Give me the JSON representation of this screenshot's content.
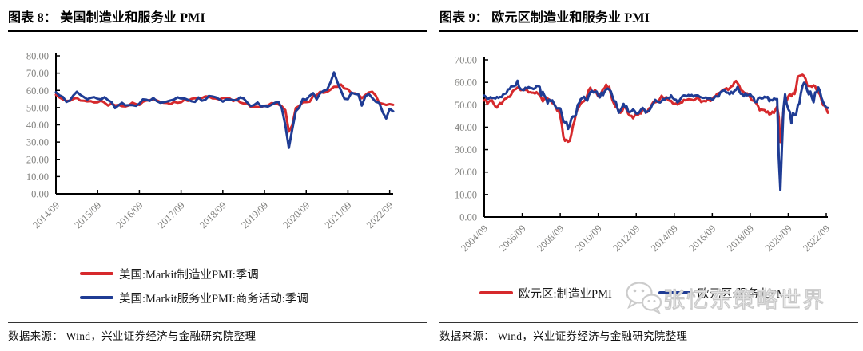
{
  "panels": [
    {
      "title": "图表 8：  美国制造业和服务业 PMI",
      "source": "数据来源：  Wind，兴业证券经济与金融研究院整理",
      "legend": [
        {
          "label": "美国:Markit制造业PMI:季调",
          "color": "#d6292c"
        },
        {
          "label": "美国:Markit服务业PMI:商务活动:季调",
          "color": "#1f3c94"
        }
      ]
    },
    {
      "title": "图表 9：  欧元区制造业和服务业 PMI",
      "source": "数据来源：  Wind，兴业证券经济与金融研究院整理",
      "legend": [
        {
          "label": "欧元区:制造业PMI",
          "color": "#d6292c"
        },
        {
          "label": "欧元区:服务业PMI",
          "color": "#1f3c94"
        }
      ],
      "watermark_text": "张忆东策略世界"
    }
  ],
  "colors": {
    "manufacturing_red": "#d6292c",
    "services_blue": "#1f3c94",
    "axis_black": "#000000",
    "tick_gray": "#80807e",
    "watermark_gray": "#cccccc"
  },
  "chart_data": [
    {
      "type": "line",
      "title": "美国制造业和服务业 PMI",
      "x_start": "2014/09",
      "x_end": "2022/10",
      "x_frequency": "monthly",
      "ylim": [
        0,
        80
      ],
      "y_step": 10,
      "grid": false,
      "legend_position": "bottom-left-stacked",
      "x_tick_labels": [
        "2014/09",
        "2015/09",
        "2016/09",
        "2017/09",
        "2018/09",
        "2019/09",
        "2020/09",
        "2021/09",
        "2022/09"
      ],
      "x_tick_indices": [
        0,
        12,
        24,
        36,
        48,
        60,
        72,
        84,
        96
      ],
      "series": [
        {
          "name": "美国:Markit制造业PMI:季调",
          "color": "#d6292c",
          "values": [
            57.5,
            55.9,
            54.8,
            53.9,
            53.9,
            55.1,
            55.7,
            54.1,
            54.0,
            53.6,
            53.8,
            53.0,
            53.1,
            54.1,
            52.8,
            51.2,
            52.4,
            51.3,
            51.5,
            50.8,
            50.7,
            51.3,
            52.9,
            52.0,
            51.5,
            53.4,
            54.1,
            54.3,
            55.0,
            54.2,
            53.3,
            52.8,
            52.7,
            52.0,
            53.3,
            52.8,
            53.1,
            54.6,
            53.9,
            55.1,
            55.5,
            55.3,
            55.6,
            56.5,
            56.4,
            55.4,
            55.3,
            54.7,
            55.6,
            55.7,
            55.3,
            53.8,
            54.9,
            53.0,
            52.4,
            52.6,
            50.5,
            50.6,
            50.4,
            50.3,
            51.1,
            51.3,
            52.6,
            52.4,
            51.9,
            50.7,
            48.5,
            36.1,
            39.8,
            49.8,
            50.9,
            53.1,
            53.2,
            53.4,
            56.7,
            57.1,
            59.2,
            58.6,
            59.1,
            60.5,
            62.1,
            62.1,
            63.4,
            61.1,
            60.7,
            58.4,
            58.3,
            57.7,
            55.5,
            57.3,
            58.8,
            59.2,
            57.0,
            52.7,
            52.2,
            51.5,
            52.0,
            51.6
          ]
        },
        {
          "name": "美国:Markit服务业PMI:商务活动:季调",
          "color": "#1f3c94",
          "values": [
            58.9,
            57.1,
            56.2,
            53.3,
            54.2,
            57.1,
            59.2,
            57.4,
            56.2,
            54.8,
            55.7,
            56.1,
            55.1,
            54.8,
            56.1,
            54.3,
            53.2,
            49.7,
            51.3,
            52.8,
            51.3,
            51.4,
            51.4,
            51.0,
            52.3,
            54.8,
            54.6,
            53.9,
            55.6,
            53.8,
            52.8,
            53.1,
            53.6,
            54.2,
            54.7,
            56.0,
            55.3,
            55.3,
            54.5,
            53.7,
            53.3,
            55.9,
            54.0,
            54.6,
            56.8,
            56.5,
            56.0,
            54.8,
            53.5,
            54.8,
            54.7,
            54.4,
            54.2,
            56.0,
            55.3,
            53.0,
            50.9,
            51.5,
            53.0,
            50.7,
            50.9,
            50.6,
            51.6,
            52.8,
            53.4,
            49.4,
            39.8,
            26.7,
            37.5,
            47.9,
            50.0,
            55.0,
            54.6,
            56.9,
            58.4,
            54.8,
            58.3,
            59.8,
            60.4,
            64.7,
            70.4,
            64.6,
            59.9,
            55.1,
            54.9,
            58.7,
            58.0,
            57.6,
            51.2,
            56.5,
            58.0,
            55.6,
            53.4,
            52.7,
            47.3,
            43.7,
            49.3,
            47.8
          ]
        }
      ]
    },
    {
      "type": "line",
      "title": "欧元区制造业和服务业 PMI",
      "x_start": "2004/09",
      "x_end": "2022/10",
      "x_frequency": "monthly",
      "ylim": [
        0,
        70
      ],
      "y_step": 10,
      "grid": false,
      "legend_position": "bottom-row",
      "x_tick_labels": [
        "2004/09",
        "2006/09",
        "2008/09",
        "2010/09",
        "2012/09",
        "2014/09",
        "2016/09",
        "2018/09",
        "2020/09",
        "2022/09"
      ],
      "x_tick_indices": [
        0,
        24,
        48,
        72,
        96,
        120,
        144,
        168,
        192,
        216
      ],
      "series": [
        {
          "name": "欧元区:制造业PMI",
          "color": "#d6292c",
          "values": [
            51.9,
            52.4,
            50.4,
            51.4,
            51.9,
            51.9,
            50.4,
            49.2,
            48.7,
            49.9,
            50.8,
            50.4,
            51.7,
            52.7,
            52.8,
            53.6,
            53.5,
            54.5,
            56.1,
            56.7,
            57.0,
            57.7,
            57.4,
            56.5,
            56.6,
            57.0,
            56.6,
            56.5,
            55.5,
            55.6,
            55.4,
            55.4,
            55.0,
            55.6,
            54.9,
            54.3,
            53.2,
            51.5,
            52.8,
            52.6,
            52.8,
            52.3,
            52.0,
            50.7,
            50.6,
            49.2,
            47.4,
            47.6,
            45.0,
            41.1,
            35.6,
            33.9,
            34.4,
            33.5,
            33.9,
            36.8,
            40.7,
            42.6,
            46.3,
            48.2,
            49.3,
            50.7,
            51.2,
            51.6,
            52.4,
            54.2,
            56.6,
            57.6,
            55.8,
            55.6,
            56.7,
            55.1,
            53.7,
            54.6,
            55.3,
            57.1,
            57.3,
            59.0,
            57.5,
            58.0,
            54.6,
            52.0,
            50.4,
            49.0,
            48.5,
            47.1,
            46.4,
            46.9,
            48.8,
            49.0,
            47.7,
            45.9,
            45.1,
            45.1,
            44.0,
            45.1,
            46.1,
            45.4,
            46.2,
            46.1,
            47.9,
            47.9,
            46.8,
            46.7,
            48.3,
            48.8,
            50.3,
            51.4,
            51.1,
            51.3,
            51.6,
            52.7,
            54.0,
            53.2,
            53.0,
            53.4,
            52.2,
            51.8,
            51.8,
            50.7,
            50.3,
            50.6,
            50.1,
            50.6,
            51.0,
            51.0,
            52.2,
            52.0,
            52.2,
            52.5,
            52.4,
            52.3,
            52.0,
            52.3,
            52.8,
            53.2,
            52.3,
            51.2,
            51.6,
            51.7,
            51.5,
            52.8,
            52.0,
            51.7,
            52.6,
            53.5,
            53.7,
            54.9,
            55.2,
            55.4,
            56.2,
            56.7,
            57.0,
            57.4,
            56.6,
            57.4,
            58.1,
            58.5,
            60.1,
            60.6,
            59.6,
            58.6,
            56.6,
            56.2,
            55.5,
            54.9,
            55.1,
            54.6,
            53.2,
            52.0,
            51.8,
            51.4,
            50.5,
            49.3,
            47.5,
            47.9,
            47.7,
            47.6,
            46.5,
            47.0,
            45.7,
            45.9,
            46.9,
            46.3,
            47.9,
            49.2,
            44.5,
            33.4,
            39.4,
            47.4,
            51.8,
            51.7,
            53.7,
            54.8,
            53.8,
            55.2,
            54.8,
            57.9,
            62.5,
            62.9,
            63.1,
            63.4,
            62.8,
            61.4,
            58.6,
            58.3,
            58.4,
            58.0,
            58.7,
            58.2,
            56.5,
            55.5,
            54.6,
            52.1,
            49.8,
            49.6,
            48.4,
            46.4
          ]
        },
        {
          "name": "欧元区:服务业PMI",
          "color": "#1f3c94",
          "values": [
            54.1,
            53.5,
            52.6,
            52.8,
            53.4,
            53.0,
            53.1,
            52.8,
            53.5,
            53.1,
            53.5,
            53.4,
            54.7,
            54.9,
            55.2,
            56.8,
            57.0,
            58.2,
            58.2,
            58.3,
            58.7,
            60.7,
            57.9,
            57.0,
            56.7,
            56.5,
            57.6,
            57.2,
            57.9,
            57.5,
            57.4,
            57.0,
            57.3,
            58.3,
            58.3,
            58.0,
            54.2,
            55.8,
            54.1,
            53.1,
            50.6,
            52.3,
            51.6,
            52.0,
            50.6,
            49.1,
            48.3,
            48.5,
            48.4,
            45.8,
            42.5,
            42.1,
            42.2,
            39.2,
            40.9,
            43.8,
            44.8,
            44.7,
            45.7,
            49.9,
            50.9,
            52.6,
            53.0,
            53.6,
            52.5,
            51.8,
            54.1,
            55.6,
            56.2,
            55.5,
            55.8,
            55.9,
            54.1,
            53.3,
            55.4,
            54.2,
            55.9,
            56.8,
            57.2,
            56.7,
            56.0,
            53.7,
            51.6,
            51.5,
            48.8,
            46.4,
            47.5,
            48.8,
            50.4,
            48.8,
            49.2,
            46.9,
            46.7,
            47.1,
            47.9,
            47.2,
            46.1,
            46.0,
            46.7,
            47.8,
            48.6,
            47.9,
            46.4,
            47.0,
            47.2,
            48.3,
            49.8,
            50.7,
            52.2,
            51.6,
            51.2,
            51.0,
            51.6,
            52.6,
            52.2,
            53.1,
            53.2,
            52.8,
            54.2,
            53.1,
            52.4,
            52.3,
            51.1,
            51.6,
            52.7,
            53.7,
            54.2,
            54.1,
            53.8,
            54.4,
            54.0,
            54.4,
            53.7,
            54.1,
            54.2,
            54.2,
            53.6,
            53.3,
            53.1,
            53.1,
            53.3,
            52.8,
            52.9,
            52.8,
            52.2,
            52.8,
            53.8,
            53.7,
            53.7,
            55.5,
            56.0,
            56.4,
            56.3,
            55.4,
            55.4,
            54.7,
            55.8,
            55.0,
            56.2,
            56.6,
            58.0,
            56.2,
            54.9,
            54.7,
            53.8,
            55.2,
            54.2,
            54.4,
            54.7,
            53.7,
            53.4,
            51.2,
            51.2,
            52.8,
            53.3,
            52.8,
            52.9,
            53.6,
            53.2,
            53.5,
            51.6,
            52.2,
            51.9,
            52.8,
            52.5,
            52.6,
            26.4,
            12.0,
            30.5,
            48.3,
            54.7,
            50.5,
            48.0,
            46.9,
            41.7,
            46.4,
            45.4,
            45.7,
            49.6,
            50.5,
            55.2,
            58.3,
            59.8,
            59.0,
            56.4,
            54.6,
            55.9,
            53.1,
            51.1,
            55.5,
            55.6,
            57.7,
            56.1,
            53.0,
            51.2,
            49.8,
            48.8,
            48.6
          ]
        }
      ]
    }
  ]
}
